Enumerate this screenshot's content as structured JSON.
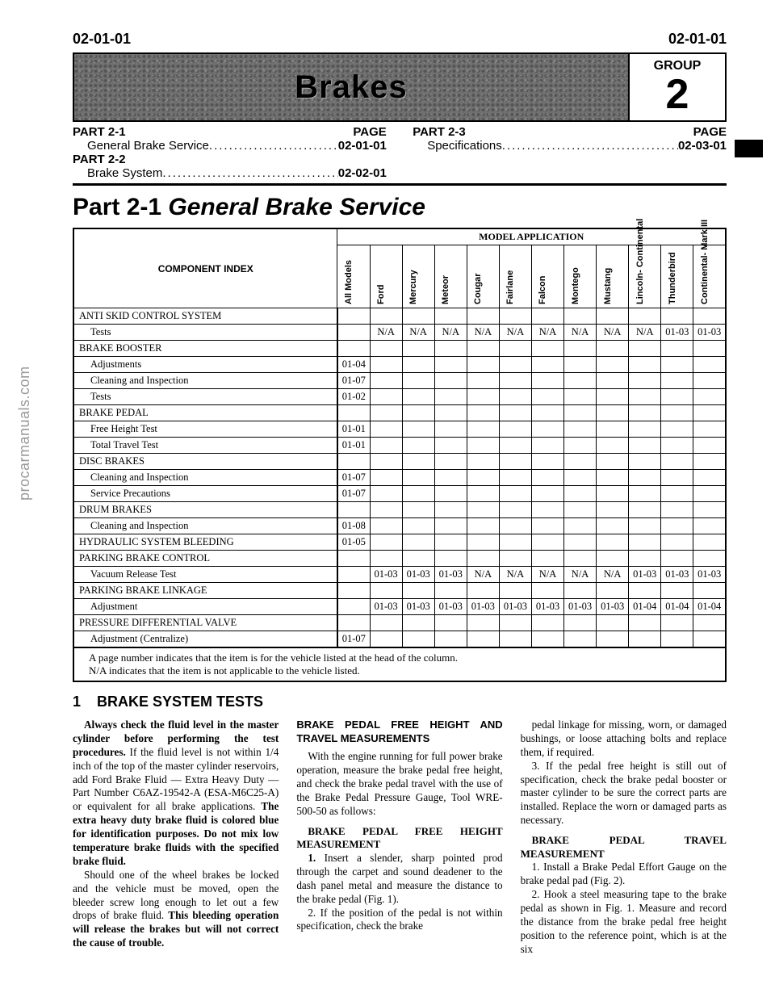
{
  "page": {
    "left_num": "02-01-01",
    "right_num": "02-01-01"
  },
  "watermark": "procarmanuals.com",
  "banner": {
    "title": "Brakes",
    "group_label": "GROUP",
    "group_num": "2"
  },
  "toc": {
    "left": [
      {
        "part": "PART 2-1",
        "page_label": "PAGE",
        "title": "General Brake Service",
        "page": "02-01-01"
      },
      {
        "part": "PART 2-2",
        "page_label": "",
        "title": "Brake System",
        "page": "02-02-01"
      }
    ],
    "right": [
      {
        "part": "PART 2-3",
        "page_label": "PAGE",
        "title": "Specifications",
        "page": "02-03-01"
      }
    ]
  },
  "part_title_a": "Part 2-1",
  "part_title_b": "General Brake Service",
  "table": {
    "model_header": "MODEL APPLICATION",
    "index_header": "COMPONENT INDEX",
    "columns": [
      "All Models",
      "Ford",
      "Mercury",
      "Meteor",
      "Cougar",
      "Fairlane",
      "Falcon",
      "Montego",
      "Mustang",
      "Lincoln-\nContinental",
      "Thunderbird",
      "Continental-\nMark III"
    ],
    "rows": [
      {
        "label": "ANTI SKID CONTROL SYSTEM",
        "caps": true,
        "cells": [
          "",
          "",
          "",
          "",
          "",
          "",
          "",
          "",
          "",
          "",
          "",
          ""
        ]
      },
      {
        "label": "Tests",
        "sub": true,
        "cells": [
          "",
          "N/A",
          "N/A",
          "N/A",
          "N/A",
          "N/A",
          "N/A",
          "N/A",
          "N/A",
          "N/A",
          "01-03",
          "01-03"
        ]
      },
      {
        "label": "BRAKE BOOSTER",
        "caps": true,
        "cells": [
          "",
          "",
          "",
          "",
          "",
          "",
          "",
          "",
          "",
          "",
          "",
          ""
        ]
      },
      {
        "label": "Adjustments",
        "sub": true,
        "cells": [
          "01-04",
          "",
          "",
          "",
          "",
          "",
          "",
          "",
          "",
          "",
          "",
          ""
        ]
      },
      {
        "label": "Cleaning and Inspection",
        "sub": true,
        "cells": [
          "01-07",
          "",
          "",
          "",
          "",
          "",
          "",
          "",
          "",
          "",
          "",
          ""
        ]
      },
      {
        "label": "Tests",
        "sub": true,
        "cells": [
          "01-02",
          "",
          "",
          "",
          "",
          "",
          "",
          "",
          "",
          "",
          "",
          ""
        ]
      },
      {
        "label": "BRAKE PEDAL",
        "caps": true,
        "cells": [
          "",
          "",
          "",
          "",
          "",
          "",
          "",
          "",
          "",
          "",
          "",
          ""
        ]
      },
      {
        "label": "Free Height Test",
        "sub": true,
        "cells": [
          "01-01",
          "",
          "",
          "",
          "",
          "",
          "",
          "",
          "",
          "",
          "",
          ""
        ]
      },
      {
        "label": "Total Travel Test",
        "sub": true,
        "cells": [
          "01-01",
          "",
          "",
          "",
          "",
          "",
          "",
          "",
          "",
          "",
          "",
          ""
        ]
      },
      {
        "label": "DISC BRAKES",
        "caps": true,
        "cells": [
          "",
          "",
          "",
          "",
          "",
          "",
          "",
          "",
          "",
          "",
          "",
          ""
        ]
      },
      {
        "label": "Cleaning and Inspection",
        "sub": true,
        "cells": [
          "01-07",
          "",
          "",
          "",
          "",
          "",
          "",
          "",
          "",
          "",
          "",
          ""
        ]
      },
      {
        "label": "Service Precautions",
        "sub": true,
        "cells": [
          "01-07",
          "",
          "",
          "",
          "",
          "",
          "",
          "",
          "",
          "",
          "",
          ""
        ]
      },
      {
        "label": "DRUM BRAKES",
        "caps": true,
        "cells": [
          "",
          "",
          "",
          "",
          "",
          "",
          "",
          "",
          "",
          "",
          "",
          ""
        ]
      },
      {
        "label": "Cleaning and Inspection",
        "sub": true,
        "cells": [
          "01-08",
          "",
          "",
          "",
          "",
          "",
          "",
          "",
          "",
          "",
          "",
          ""
        ]
      },
      {
        "label": "HYDRAULIC SYSTEM BLEEDING",
        "caps": true,
        "cells": [
          "01-05",
          "",
          "",
          "",
          "",
          "",
          "",
          "",
          "",
          "",
          "",
          ""
        ]
      },
      {
        "label": "PARKING BRAKE CONTROL",
        "caps": true,
        "cells": [
          "",
          "",
          "",
          "",
          "",
          "",
          "",
          "",
          "",
          "",
          "",
          ""
        ]
      },
      {
        "label": "Vacuum Release Test",
        "sub": true,
        "cells": [
          "",
          "01-03",
          "01-03",
          "01-03",
          "N/A",
          "N/A",
          "N/A",
          "N/A",
          "N/A",
          "01-03",
          "01-03",
          "01-03"
        ]
      },
      {
        "label": "PARKING BRAKE LINKAGE",
        "caps": true,
        "cells": [
          "",
          "",
          "",
          "",
          "",
          "",
          "",
          "",
          "",
          "",
          "",
          ""
        ]
      },
      {
        "label": "Adjustment",
        "sub": true,
        "cells": [
          "",
          "01-03",
          "01-03",
          "01-03",
          "01-03",
          "01-03",
          "01-03",
          "01-03",
          "01-03",
          "01-04",
          "01-04",
          "01-04"
        ]
      },
      {
        "label": "PRESSURE DIFFERENTIAL VALVE",
        "caps": true,
        "cells": [
          "",
          "",
          "",
          "",
          "",
          "",
          "",
          "",
          "",
          "",
          "",
          ""
        ]
      },
      {
        "label": "Adjustment (Centralize)",
        "sub": true,
        "cells": [
          "01-07",
          "",
          "",
          "",
          "",
          "",
          "",
          "",
          "",
          "",
          "",
          ""
        ]
      }
    ],
    "note1": "A page number indicates that the item is for the vehicle listed at the head of the column.",
    "note2": "N/A indicates that the item is not applicable to the vehicle listed."
  },
  "section1": {
    "num": "1",
    "title": "BRAKE SYSTEM TESTS"
  },
  "body": {
    "p1a": "Always check the fluid level in the master cylinder before performing the test procedures.",
    "p1b": " If the fluid level is not within 1/4 inch of the top of the master cylinder reservoirs, add Ford Brake Fluid — Extra Heavy Duty — Part Number C6AZ-19542-A (ESA-M6C25-A) or equivalent for all brake applications. ",
    "p1c": "The extra heavy duty brake fluid is colored blue for identification purposes. Do not mix low temperature brake fluids with the specified brake fluid.",
    "p2a": "Should one of the wheel brakes be locked and the vehicle must be moved, open the bleeder screw long enough to let out a few drops of brake fluid. ",
    "p2b": "This bleeding operation will release the brakes but will not correct the cause of trouble.",
    "h2": "BRAKE PEDAL FREE HEIGHT AND TRAVEL MEASUREMENTS",
    "p3": "With the engine running for full power brake operation, measure the brake pedal free height, and check the brake pedal travel with the use of the Brake Pedal Pressure Gauge, Tool WRE-500-50 as follows:",
    "h3": "BRAKE PEDAL FREE HEIGHT MEASUREMENT",
    "p4": "1. Insert a slender, sharp pointed prod through the carpet and sound deadener to the dash panel metal and measure the distance to the brake pedal (Fig. 1).",
    "p5": "2. If the position of the pedal is not within specification, check the brake",
    "p6": "pedal linkage for missing, worn, or damaged bushings, or loose attaching bolts and replace them, if required.",
    "p7": "3. If the pedal free height is still out of specification, check the brake pedal booster or master cylinder to be sure the correct parts are installed. Replace the worn or damaged parts as necessary.",
    "h4": "BRAKE PEDAL TRAVEL MEASUREMENT",
    "p8": "1. Install a Brake Pedal Effort Gauge on the brake pedal pad (Fig. 2).",
    "p9": "2. Hook a steel measuring tape to the brake pedal as shown in Fig. 1. Measure and record the distance from the brake pedal free height position to the reference point, which is at the six"
  }
}
